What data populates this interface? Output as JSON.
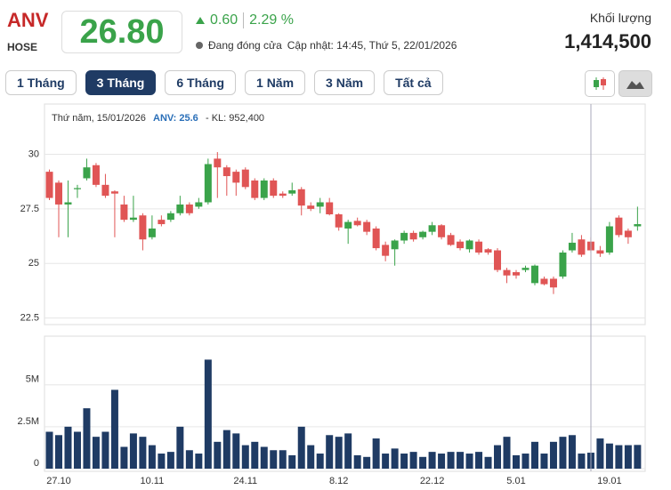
{
  "header": {
    "symbol": "ANV",
    "exchange": "HOSE",
    "price": "26.80",
    "change": "0.60",
    "change_pct": "2.29 %",
    "status": "Đang đóng cửa",
    "updated": "Cập nhật: 14:45, Thứ 5, 22/01/2026",
    "volume_label": "Khối lượng",
    "volume": "1,414,500"
  },
  "ranges": {
    "items": [
      "1 Tháng",
      "3 Tháng",
      "6 Tháng",
      "1 Năm",
      "3 Năm",
      "Tất cả"
    ],
    "active": 1
  },
  "tooltip": {
    "date": "Thứ năm, 15/01/2026",
    "price": "ANV: 25.6",
    "volume": "- KL: 952,400"
  },
  "chart_data": {
    "type": "candlestick",
    "categories": [
      null,
      "27.10",
      null,
      null,
      null,
      null,
      null,
      null,
      null,
      null,
      null,
      "10.11",
      null,
      null,
      null,
      null,
      null,
      null,
      null,
      null,
      null,
      "24.11",
      null,
      null,
      null,
      null,
      null,
      null,
      null,
      null,
      null,
      "8.12",
      null,
      null,
      null,
      null,
      null,
      null,
      null,
      null,
      null,
      "22.12",
      null,
      null,
      null,
      null,
      null,
      null,
      null,
      null,
      "5.01",
      null,
      null,
      null,
      null,
      null,
      null,
      null,
      null,
      null,
      "19.01",
      null,
      null,
      null
    ],
    "open": [
      29.2,
      28.7,
      27.7,
      28.4,
      28.9,
      29.5,
      28.6,
      28.3,
      27.7,
      27.0,
      27.2,
      26.2,
      27.0,
      27.0,
      27.3,
      27.7,
      27.6,
      27.8,
      29.8,
      29.4,
      29.2,
      29.3,
      28.8,
      28.0,
      28.8,
      28.2,
      28.2,
      28.4,
      27.65,
      27.6,
      27.8,
      27.25,
      26.6,
      26.95,
      26.9,
      26.6,
      25.85,
      25.65,
      26.05,
      26.4,
      26.2,
      26.45,
      26.75,
      26.3,
      26.0,
      25.65,
      26.0,
      25.65,
      25.6,
      24.7,
      24.6,
      24.7,
      24.1,
      24.3,
      24.3,
      24.4,
      25.6,
      26.1,
      26.0,
      25.6,
      25.5,
      27.1,
      26.5,
      26.7
    ],
    "high": [
      29.3,
      28.8,
      28.8,
      28.6,
      29.8,
      29.6,
      29.1,
      28.35,
      28.1,
      28.1,
      27.3,
      27.2,
      27.2,
      27.4,
      28.1,
      27.8,
      28.0,
      29.8,
      30.1,
      29.5,
      29.3,
      29.4,
      28.9,
      28.9,
      28.9,
      28.3,
      28.7,
      28.5,
      27.8,
      28.0,
      28.0,
      27.3,
      27.0,
      27.1,
      27.0,
      26.7,
      26.0,
      26.1,
      26.5,
      26.5,
      26.5,
      26.9,
      26.8,
      26.4,
      26.1,
      26.1,
      26.1,
      25.7,
      25.7,
      24.8,
      24.7,
      24.9,
      24.95,
      24.4,
      24.4,
      25.6,
      26.4,
      26.3,
      26.2,
      25.8,
      26.9,
      27.2,
      26.6,
      27.6
    ],
    "low": [
      27.9,
      26.2,
      26.2,
      28.0,
      28.8,
      28.5,
      28.0,
      26.2,
      26.9,
      26.9,
      25.6,
      26.1,
      26.7,
      26.9,
      27.2,
      27.2,
      27.5,
      27.7,
      28.0,
      28.1,
      28.1,
      28.4,
      27.9,
      27.9,
      28.0,
      28.0,
      28.1,
      27.2,
      27.4,
      27.3,
      27.2,
      26.5,
      25.9,
      26.7,
      26.3,
      25.6,
      25.1,
      24.9,
      25.9,
      26.0,
      26.1,
      26.3,
      26.1,
      25.8,
      25.6,
      25.5,
      25.4,
      25.4,
      24.6,
      24.1,
      24.3,
      24.6,
      24.0,
      24.0,
      23.6,
      24.3,
      25.5,
      25.3,
      25.5,
      25.3,
      25.4,
      26.2,
      25.9,
      26.5
    ],
    "close": [
      28.0,
      27.7,
      27.8,
      28.45,
      29.4,
      28.6,
      28.1,
      28.2,
      27.0,
      27.1,
      26.1,
      26.6,
      26.8,
      27.3,
      27.7,
      27.3,
      27.8,
      29.55,
      29.4,
      29.0,
      28.7,
      28.5,
      28.0,
      28.8,
      28.1,
      28.1,
      28.35,
      27.65,
      27.5,
      27.8,
      27.25,
      26.65,
      26.9,
      26.75,
      26.45,
      25.7,
      25.35,
      26.05,
      26.4,
      26.1,
      26.45,
      26.75,
      26.2,
      25.85,
      25.7,
      26.05,
      25.5,
      25.5,
      24.7,
      24.45,
      24.45,
      24.8,
      24.9,
      24.05,
      23.9,
      25.5,
      25.95,
      25.4,
      25.6,
      25.45,
      26.7,
      26.3,
      26.2,
      26.8
    ],
    "up_color": "#3aa34a",
    "down_color": "#e05555",
    "ylim": [
      22.2,
      32.3
    ],
    "yticks": [
      22.5,
      25,
      27.5,
      30
    ],
    "grid": true,
    "volume": {
      "values": [
        2200000,
        2000000,
        2500000,
        2200000,
        3600000,
        1900000,
        2200000,
        4700000,
        1300000,
        2100000,
        1900000,
        1400000,
        900000,
        1000000,
        2500000,
        1100000,
        900000,
        6500000,
        1600000,
        2300000,
        2100000,
        1400000,
        1600000,
        1300000,
        1100000,
        1100000,
        800000,
        2500000,
        1400000,
        900000,
        2000000,
        1900000,
        2100000,
        800000,
        700000,
        1800000,
        900000,
        1200000,
        900000,
        1000000,
        700000,
        1000000,
        900000,
        1000000,
        1000000,
        900000,
        1000000,
        700000,
        1400000,
        1900000,
        800000,
        900000,
        1600000,
        900000,
        1600000,
        1900000,
        2000000,
        900000,
        952400,
        1800000,
        1500000,
        1400000,
        1400000,
        1414500
      ],
      "color": "#1f3b64",
      "ylim": [
        0,
        7900000
      ],
      "yticks": [
        0,
        {
          "value": 2500000,
          "label": "2.5M"
        },
        {
          "value": 5000000,
          "label": "5M"
        }
      ]
    }
  }
}
